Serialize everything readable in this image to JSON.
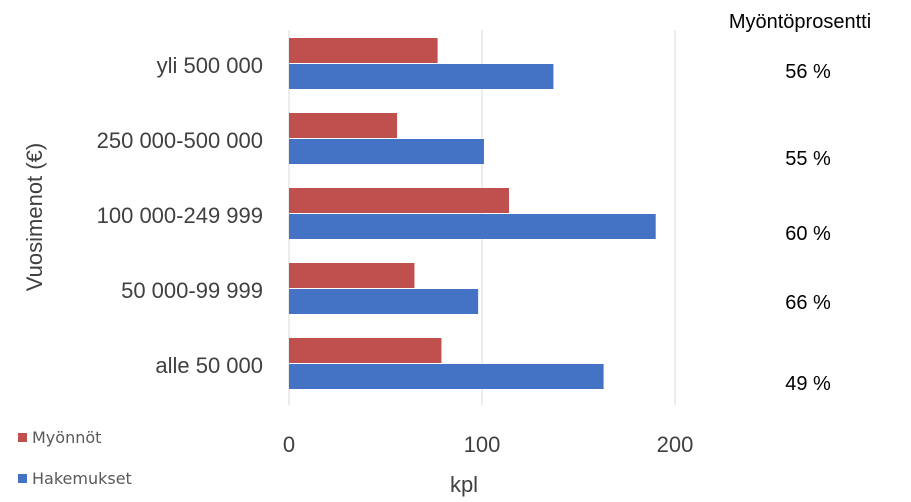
{
  "chart_data": {
    "type": "bar",
    "orientation": "horizontal",
    "categories": [
      "yli 500 000",
      "250 000-500 000",
      "100 000-249 999",
      "50 000-99 999",
      "alle 50 000"
    ],
    "series": [
      {
        "name": "Myönnöt",
        "color": "#c0504d",
        "values": [
          77,
          56,
          114,
          65,
          79
        ]
      },
      {
        "name": "Hakemukset",
        "color": "#4472c4",
        "values": [
          137,
          101,
          190,
          98,
          163
        ]
      }
    ],
    "xlabel": "kpl",
    "ylabel": "Vuosimenot (€)",
    "xlim": [
      0,
      200
    ],
    "xticks": [
      "0",
      "100",
      "200"
    ],
    "xtick_values": [
      0,
      100,
      200
    ],
    "grid": true,
    "legend_position": "bottom-left",
    "annotation_header": "Myöntöprosentti",
    "annotations": [
      "56 %",
      "55 %",
      "60 %",
      "66 %",
      "49 %"
    ]
  }
}
